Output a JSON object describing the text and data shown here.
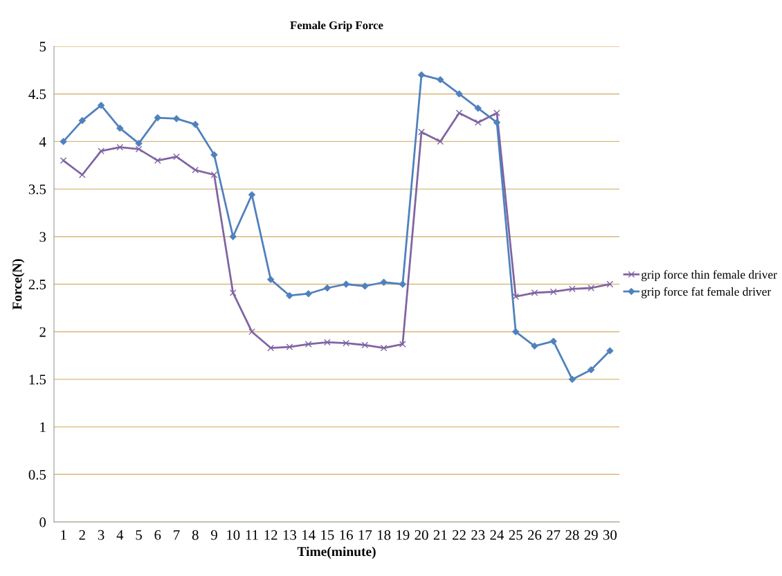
{
  "chart_data": {
    "type": "line",
    "title": "Female Grip Force",
    "xlabel": "Time(minute)",
    "ylabel": "Force(N)",
    "categories": [
      "1",
      "2",
      "3",
      "4",
      "5",
      "6",
      "7",
      "8",
      "9",
      "10",
      "11",
      "12",
      "13",
      "14",
      "15",
      "16",
      "17",
      "18",
      "19",
      "20",
      "21",
      "22",
      "23",
      "24",
      "25",
      "26",
      "27",
      "28",
      "29",
      "30"
    ],
    "series": [
      {
        "name": "grip force thin female driver",
        "color": "#8064a2",
        "marker": "cross",
        "values": [
          3.8,
          3.65,
          3.9,
          3.94,
          3.92,
          3.8,
          3.84,
          3.7,
          3.65,
          2.41,
          2.0,
          1.83,
          1.84,
          1.87,
          1.89,
          1.88,
          1.86,
          1.83,
          1.87,
          4.1,
          4.0,
          4.3,
          4.2,
          4.3,
          2.37,
          2.41,
          2.42,
          2.45,
          2.46,
          2.5
        ]
      },
      {
        "name": "grip force fat female driver",
        "color": "#4f81bd",
        "marker": "diamond",
        "values": [
          4.0,
          4.22,
          4.38,
          4.14,
          3.98,
          4.25,
          4.24,
          4.18,
          3.86,
          3.0,
          3.44,
          2.55,
          2.38,
          2.4,
          2.46,
          2.5,
          2.48,
          2.52,
          2.5,
          4.7,
          4.65,
          4.5,
          4.35,
          4.2,
          2.0,
          1.85,
          1.9,
          1.5,
          1.6,
          1.8
        ]
      }
    ],
    "ylim": [
      0,
      5
    ],
    "yticks": [
      0,
      0.5,
      1,
      1.5,
      2,
      2.5,
      3,
      3.5,
      4,
      4.5,
      5
    ],
    "grid": "y",
    "legend": "right",
    "line_style": "solid"
  }
}
